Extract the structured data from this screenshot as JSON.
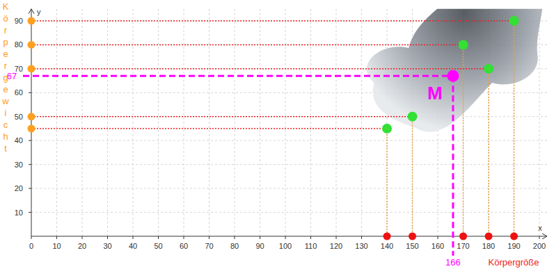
{
  "chart_data": {
    "type": "scatter",
    "x_label": "Körpergröße",
    "y_label": "Körpergewicht",
    "x_axis_name": "x",
    "y_axis_name": "y",
    "series": [
      {
        "x": [
          140,
          150,
          170,
          180,
          190
        ],
        "values": [
          45,
          50,
          80,
          70,
          90
        ],
        "color": "#33e033",
        "marker": "circle"
      }
    ],
    "annotations": [
      {
        "text": "M",
        "x": 166,
        "y": 67,
        "color": "#ff00ff"
      }
    ],
    "xlim": [
      0,
      203
    ],
    "ylim": [
      0,
      95
    ],
    "xticks": [
      0,
      10,
      20,
      30,
      40,
      50,
      60,
      70,
      80,
      90,
      100,
      110,
      120,
      130,
      140,
      150,
      160,
      170,
      180,
      190,
      200
    ],
    "yticks": [
      0,
      10,
      20,
      30,
      40,
      50,
      60,
      70,
      80,
      90
    ],
    "grid": true
  }
}
